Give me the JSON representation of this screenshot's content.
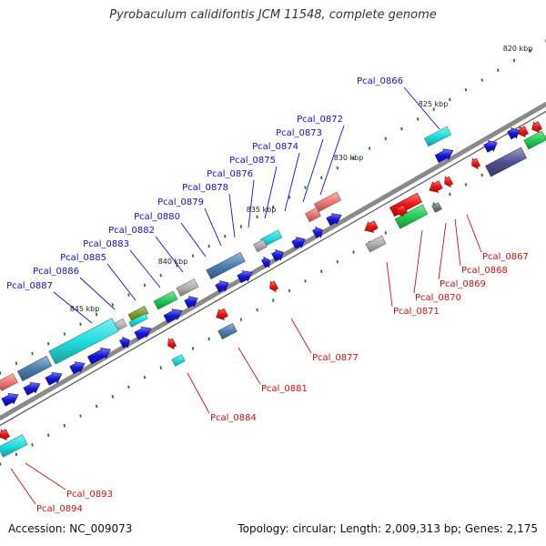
{
  "title": "Pyrobaculum calidifontis JCM 11548, complete genome",
  "footer": {
    "accession": "Accession: NC_009073",
    "summary": "Topology: circular; Length: 2,009,313 bp; Genes: 2,175"
  },
  "ruler_labels": [
    "820 kbp",
    "825 kbp",
    "830 kbp",
    "835 kbp",
    "840 kbp",
    "845 kbp"
  ],
  "forward_gene_labels": [
    "Pcal_0866",
    "Pcal_0872",
    "Pcal_0873",
    "Pcal_0874",
    "Pcal_0875",
    "Pcal_0876",
    "Pcal_0878",
    "Pcal_0879",
    "Pcal_0880",
    "Pcal_0882",
    "Pcal_0883",
    "Pcal_0885",
    "Pcal_0886",
    "Pcal_0887"
  ],
  "reverse_gene_labels": [
    "Pcal_0867",
    "Pcal_0868",
    "Pcal_0869",
    "Pcal_0870",
    "Pcal_0871",
    "Pcal_0877",
    "Pcal_0881",
    "Pcal_0884",
    "Pcal_0893",
    "Pcal_0894"
  ],
  "colors": {
    "forward_label": "#1010cc",
    "reverse_label": "#cc1010",
    "forward_arrow": "#1414d8",
    "reverse_arrow": "#ee1111",
    "cyan": "#22dddd",
    "salmon": "#ee7777",
    "green": "#22cc55",
    "steel": "#4a7fb0",
    "gray": "#b0b0b0",
    "olive": "#7a9a20",
    "slate": "#505090",
    "tick": "#108010",
    "backbone": "#8a8a8a"
  }
}
